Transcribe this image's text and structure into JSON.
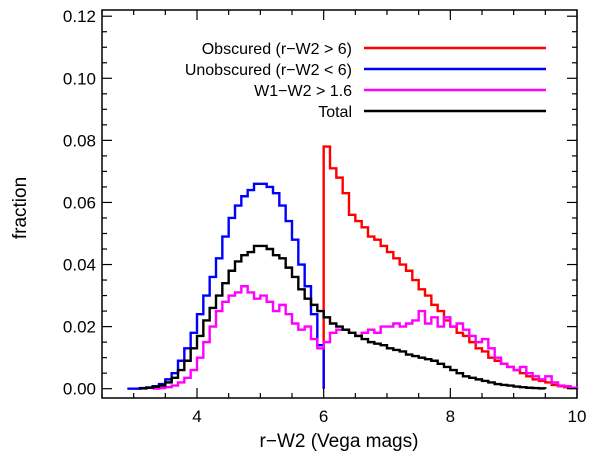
{
  "chart_data": {
    "type": "line",
    "style": "step-histogram",
    "xlabel": "r−W2 (Vega mags)",
    "ylabel": "fraction",
    "xlim": [
      2.5,
      10
    ],
    "ylim": [
      -0.003,
      0.122
    ],
    "x_ticks": [
      4,
      6,
      8,
      10
    ],
    "y_ticks": [
      0.0,
      0.02,
      0.04,
      0.06,
      0.08,
      0.1,
      0.12
    ],
    "y_tick_labels": [
      "0.00",
      "0.02",
      "0.04",
      "0.06",
      "0.08",
      "0.10",
      "0.12"
    ],
    "grid": false,
    "legend_position": "top-right",
    "series": [
      {
        "name": "Obscured (r−W2 > 6)",
        "color": "#ff0000",
        "x": [
          6.0,
          6.1,
          6.2,
          6.3,
          6.4,
          6.5,
          6.6,
          6.7,
          6.8,
          6.9,
          7.0,
          7.1,
          7.2,
          7.3,
          7.4,
          7.5,
          7.6,
          7.7,
          7.8,
          7.9,
          8.0,
          8.1,
          8.2,
          8.3,
          8.4,
          8.5,
          8.6,
          8.7,
          8.8,
          8.9,
          9.0,
          9.1,
          9.2,
          9.3,
          9.4,
          9.5,
          9.6,
          9.7,
          9.8,
          9.9
        ],
        "y": [
          0.078,
          0.071,
          0.068,
          0.063,
          0.056,
          0.054,
          0.052,
          0.049,
          0.048,
          0.046,
          0.044,
          0.042,
          0.04,
          0.038,
          0.035,
          0.032,
          0.03,
          0.027,
          0.025,
          0.022,
          0.02,
          0.018,
          0.017,
          0.015,
          0.013,
          0.012,
          0.01,
          0.009,
          0.008,
          0.007,
          0.006,
          0.005,
          0.004,
          0.003,
          0.0025,
          0.002,
          0.0012,
          0.0008,
          0.0005,
          0.0002
        ]
      },
      {
        "name": "Unobscured (r−W2 < 6)",
        "color": "#0000ff",
        "x": [
          2.9,
          3.0,
          3.1,
          3.2,
          3.3,
          3.4,
          3.5,
          3.6,
          3.7,
          3.8,
          3.9,
          4.0,
          4.1,
          4.2,
          4.3,
          4.4,
          4.5,
          4.6,
          4.7,
          4.8,
          4.9,
          5.0,
          5.1,
          5.2,
          5.3,
          5.4,
          5.5,
          5.6,
          5.7,
          5.8,
          5.9
        ],
        "y": [
          0.0,
          0.0,
          0.0002,
          0.0004,
          0.0008,
          0.0015,
          0.003,
          0.005,
          0.009,
          0.013,
          0.018,
          0.024,
          0.03,
          0.036,
          0.042,
          0.049,
          0.055,
          0.059,
          0.062,
          0.064,
          0.066,
          0.066,
          0.065,
          0.063,
          0.059,
          0.054,
          0.048,
          0.04,
          0.033,
          0.024,
          0.014
        ]
      },
      {
        "name": "W1−W2 > 1.6",
        "color": "#ff00ff",
        "x": [
          3.3,
          3.4,
          3.5,
          3.6,
          3.7,
          3.8,
          3.9,
          4.0,
          4.1,
          4.2,
          4.3,
          4.4,
          4.5,
          4.6,
          4.7,
          4.8,
          4.9,
          5.0,
          5.1,
          5.2,
          5.3,
          5.4,
          5.5,
          5.6,
          5.7,
          5.8,
          5.9,
          6.0,
          6.1,
          6.2,
          6.3,
          6.4,
          6.5,
          6.6,
          6.7,
          6.8,
          6.9,
          7.0,
          7.1,
          7.2,
          7.3,
          7.4,
          7.5,
          7.6,
          7.7,
          7.8,
          7.9,
          8.0,
          8.1,
          8.2,
          8.3,
          8.4,
          8.5,
          8.6,
          8.7,
          8.8,
          8.9,
          9.0,
          9.1,
          9.2,
          9.3,
          9.4,
          9.5,
          9.6,
          9.7,
          9.8,
          9.9
        ],
        "y": [
          0.0,
          0.0002,
          0.0005,
          0.001,
          0.002,
          0.0035,
          0.006,
          0.01,
          0.015,
          0.02,
          0.025,
          0.028,
          0.03,
          0.031,
          0.033,
          0.031,
          0.029,
          0.03,
          0.028,
          0.025,
          0.027,
          0.024,
          0.021,
          0.019,
          0.02,
          0.016,
          0.013,
          0.015,
          0.018,
          0.019,
          0.019,
          0.018,
          0.017,
          0.018,
          0.019,
          0.018,
          0.02,
          0.02,
          0.021,
          0.02,
          0.021,
          0.022,
          0.025,
          0.021,
          0.023,
          0.02,
          0.023,
          0.02,
          0.021,
          0.019,
          0.017,
          0.015,
          0.016,
          0.013,
          0.01,
          0.008,
          0.007,
          0.006,
          0.007,
          0.005,
          0.004,
          0.003,
          0.004,
          0.002,
          0.001,
          0.0008,
          0.0003
        ]
      },
      {
        "name": "Total",
        "color": "#000000",
        "x": [
          3.1,
          3.2,
          3.3,
          3.4,
          3.5,
          3.6,
          3.7,
          3.8,
          3.9,
          4.0,
          4.1,
          4.2,
          4.3,
          4.4,
          4.5,
          4.6,
          4.7,
          4.8,
          4.9,
          5.0,
          5.1,
          5.2,
          5.3,
          5.4,
          5.5,
          5.6,
          5.7,
          5.8,
          5.9,
          6.0,
          6.1,
          6.2,
          6.3,
          6.4,
          6.5,
          6.6,
          6.7,
          6.8,
          6.9,
          7.0,
          7.1,
          7.2,
          7.3,
          7.4,
          7.5,
          7.6,
          7.7,
          7.8,
          7.9,
          8.0,
          8.1,
          8.2,
          8.3,
          8.4,
          8.5,
          8.6,
          8.7,
          8.8,
          8.9,
          9.0,
          9.1,
          9.2,
          9.3,
          9.4
        ],
        "y": [
          0.0001,
          0.0003,
          0.0006,
          0.001,
          0.002,
          0.0035,
          0.006,
          0.009,
          0.013,
          0.017,
          0.022,
          0.026,
          0.03,
          0.034,
          0.038,
          0.041,
          0.043,
          0.044,
          0.046,
          0.046,
          0.045,
          0.043,
          0.042,
          0.039,
          0.036,
          0.032,
          0.029,
          0.027,
          0.025,
          0.023,
          0.021,
          0.02,
          0.019,
          0.018,
          0.017,
          0.016,
          0.015,
          0.0145,
          0.014,
          0.013,
          0.0125,
          0.012,
          0.011,
          0.0105,
          0.01,
          0.0095,
          0.009,
          0.008,
          0.007,
          0.006,
          0.005,
          0.004,
          0.0035,
          0.003,
          0.0025,
          0.002,
          0.0015,
          0.0012,
          0.001,
          0.0007,
          0.0005,
          0.0003,
          0.0002,
          0.0001
        ]
      }
    ]
  }
}
